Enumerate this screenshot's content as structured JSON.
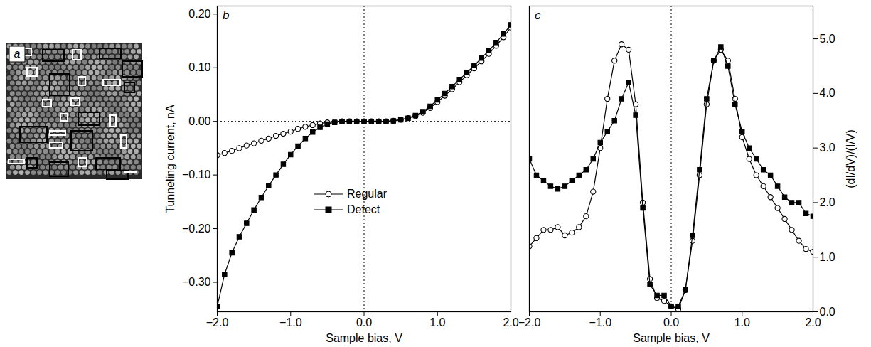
{
  "chart_data": [
    {
      "type": "image",
      "title": "a"
    },
    {
      "type": "line",
      "title": "b",
      "x_label": "Sample bias, V",
      "y_label": "Tunneling current, nA",
      "x": [
        -2.0,
        -1.9,
        -1.8,
        -1.7,
        -1.6,
        -1.5,
        -1.4,
        -1.3,
        -1.2,
        -1.1,
        -1.0,
        -0.9,
        -0.8,
        -0.7,
        -0.6,
        -0.5,
        -0.4,
        -0.3,
        -0.2,
        -0.1,
        0,
        0.1,
        0.2,
        0.3,
        0.4,
        0.5,
        0.6,
        0.7,
        0.8,
        0.9,
        1.0,
        1.1,
        1.2,
        1.3,
        1.4,
        1.5,
        1.6,
        1.7,
        1.8,
        1.9,
        2.0
      ],
      "series": [
        {
          "name": "Regular",
          "color": "#000000",
          "marker": "circle-open",
          "line_style": "solid",
          "values": [
            -0.063,
            -0.059,
            -0.055,
            -0.05,
            -0.045,
            -0.041,
            -0.036,
            -0.032,
            -0.027,
            -0.023,
            -0.019,
            -0.014,
            -0.01,
            -0.007,
            -0.004,
            -0.002,
            -0.001,
            0,
            0,
            0,
            0,
            0,
            0,
            0,
            0.001,
            0.003,
            0.006,
            0.01,
            0.016,
            0.025,
            0.036,
            0.048,
            0.06,
            0.073,
            0.086,
            0.099,
            0.112,
            0.126,
            0.141,
            0.157,
            0.175
          ]
        },
        {
          "name": "Defect",
          "color": "#000000",
          "marker": "square",
          "line_style": "solid",
          "values": [
            -0.345,
            -0.285,
            -0.245,
            -0.215,
            -0.19,
            -0.165,
            -0.142,
            -0.12,
            -0.1,
            -0.08,
            -0.062,
            -0.046,
            -0.032,
            -0.02,
            -0.011,
            -0.005,
            -0.002,
            0,
            0,
            0,
            0,
            0,
            0,
            0,
            0.001,
            0.003,
            0.006,
            0.011,
            0.018,
            0.028,
            0.04,
            0.052,
            0.065,
            0.078,
            0.091,
            0.104,
            0.118,
            0.132,
            0.147,
            0.163,
            0.18
          ]
        }
      ],
      "xlim": [
        -2,
        2
      ],
      "xticks": [
        -2,
        -1,
        0,
        1,
        2
      ],
      "ylim": [
        -0.355,
        0.215
      ],
      "yticks": [
        -0.3,
        -0.2,
        -0.1,
        0,
        0.1,
        0.2
      ],
      "legend": "bottom",
      "grid": false
    },
    {
      "type": "line",
      "title": "c",
      "x_label": "Sample bias, V",
      "y_label": "(dI/dV)/(I/V)",
      "x": [
        -2.0,
        -1.9,
        -1.8,
        -1.7,
        -1.6,
        -1.5,
        -1.4,
        -1.3,
        -1.2,
        -1.1,
        -1.0,
        -0.9,
        -0.8,
        -0.7,
        -0.6,
        -0.5,
        -0.4,
        -0.3,
        -0.2,
        -0.1,
        0,
        0.1,
        0.2,
        0.3,
        0.4,
        0.5,
        0.6,
        0.7,
        0.8,
        0.9,
        1.0,
        1.1,
        1.2,
        1.3,
        1.4,
        1.5,
        1.6,
        1.7,
        1.8,
        1.9,
        2.0
      ],
      "series": [
        {
          "name": "Regular",
          "color": "#000000",
          "marker": "circle-open",
          "line_style": "solid",
          "values": [
            1.2,
            1.35,
            1.5,
            1.5,
            1.55,
            1.4,
            1.45,
            1.55,
            1.75,
            2.2,
            3.0,
            3.9,
            4.6,
            4.9,
            4.8,
            3.8,
            2.0,
            0.6,
            0.25,
            0.2,
            0.1,
            0.05,
            0.4,
            1.3,
            2.5,
            3.8,
            4.6,
            4.8,
            4.6,
            3.9,
            3.2,
            2.8,
            2.5,
            2.3,
            2.1,
            1.9,
            1.7,
            1.5,
            1.3,
            1.15,
            1.1
          ]
        },
        {
          "name": "Defect",
          "color": "#000000",
          "marker": "square",
          "line_style": "solid",
          "values": [
            2.8,
            2.5,
            2.4,
            2.3,
            2.25,
            2.3,
            2.4,
            2.5,
            2.6,
            2.8,
            3.1,
            3.3,
            3.5,
            3.9,
            4.2,
            3.6,
            1.9,
            0.5,
            0.3,
            0.3,
            0.1,
            0.1,
            0.4,
            1.4,
            2.6,
            3.9,
            4.6,
            4.85,
            4.5,
            3.8,
            3.3,
            3.0,
            2.8,
            2.6,
            2.5,
            2.3,
            2.1,
            2.0,
            2.0,
            1.8,
            1.75
          ]
        }
      ],
      "xlim": [
        -2,
        2
      ],
      "xticks": [
        -2,
        -1,
        0,
        1,
        2
      ],
      "ylim": [
        0,
        5.6
      ],
      "yticks": [
        0,
        1,
        2,
        3,
        4,
        5
      ],
      "grid": false
    }
  ]
}
